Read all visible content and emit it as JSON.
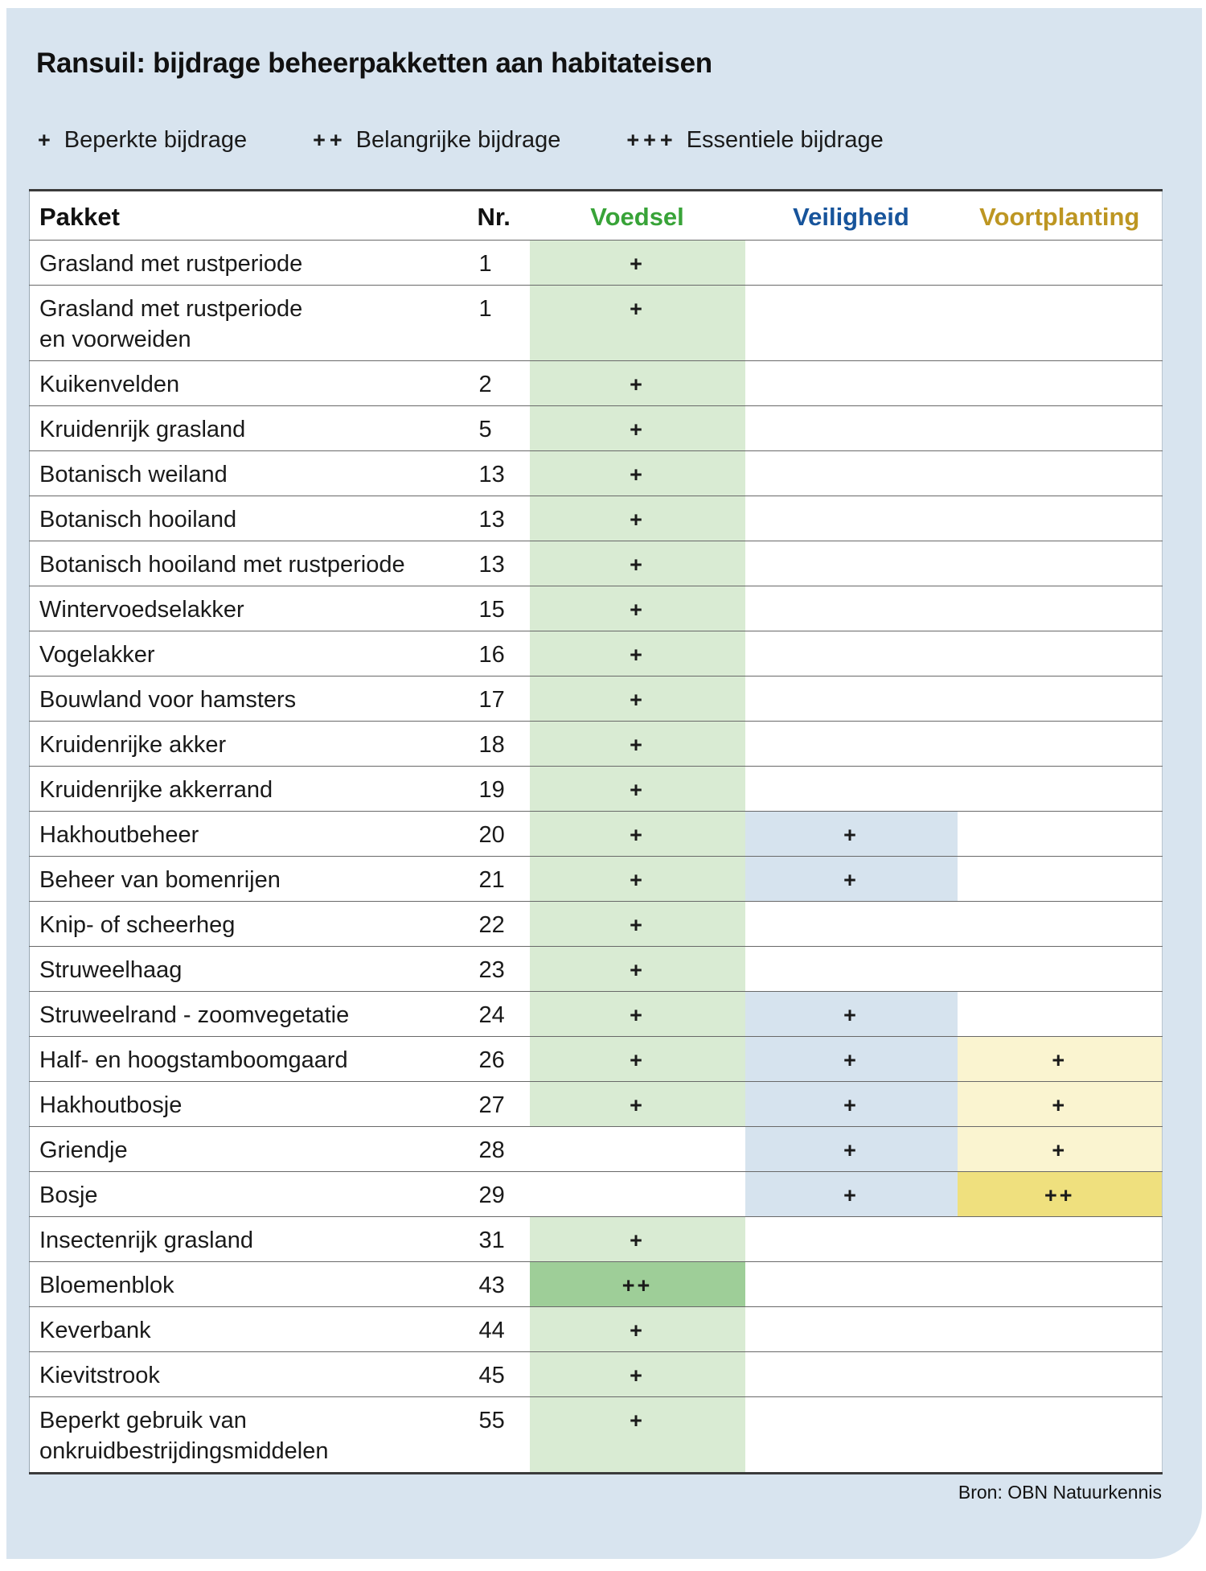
{
  "title": "Ransuil: bijdrage beheerpakketten aan habitateisen",
  "legend": [
    {
      "symbol": "+",
      "label": "Beperkte bijdrage"
    },
    {
      "symbol": "++",
      "label": "Belangrijke bijdrage"
    },
    {
      "symbol": "+++",
      "label": "Essentiele bijdrage"
    }
  ],
  "source": "Bron: OBN Natuurkennis",
  "colors": {
    "panel_background": "#d8e4ef",
    "voedsel_header": "#38a338",
    "veiligheid_header": "#17549b",
    "voortplanting_header": "#bd9622",
    "voedsel_plus": "#d9ebd3",
    "voedsel_plus2": "#9ece98",
    "veiligheid_plus": "#d6e3ee",
    "voortplanting_plus": "#faf4d0",
    "voortplanting_plus2": "#efe07e"
  },
  "chart_data": {
    "type": "table",
    "columns": [
      "Pakket",
      "Nr.",
      "Voedsel",
      "Veiligheid",
      "Voortplanting"
    ],
    "value_meanings": {
      "+": "Beperkte bijdrage",
      "++": "Belangrijke bijdrage",
      "+++": "Essentiele bijdrage"
    },
    "rows": [
      {
        "pakket_lines": [
          "Grasland met rustperiode"
        ],
        "nr": "1",
        "voedsel": "+",
        "veiligheid": "",
        "voortplanting": ""
      },
      {
        "pakket_lines": [
          "Grasland met rustperiode",
          "en voorweiden"
        ],
        "nr": "1",
        "voedsel": "+",
        "veiligheid": "",
        "voortplanting": ""
      },
      {
        "pakket_lines": [
          "Kuikenvelden"
        ],
        "nr": "2",
        "voedsel": "+",
        "veiligheid": "",
        "voortplanting": ""
      },
      {
        "pakket_lines": [
          "Kruidenrijk grasland"
        ],
        "nr": "5",
        "voedsel": "+",
        "veiligheid": "",
        "voortplanting": ""
      },
      {
        "pakket_lines": [
          "Botanisch weiland"
        ],
        "nr": "13",
        "voedsel": "+",
        "veiligheid": "",
        "voortplanting": ""
      },
      {
        "pakket_lines": [
          "Botanisch hooiland"
        ],
        "nr": "13",
        "voedsel": "+",
        "veiligheid": "",
        "voortplanting": ""
      },
      {
        "pakket_lines": [
          "Botanisch hooiland met rustperiode"
        ],
        "nr": "13",
        "voedsel": "+",
        "veiligheid": "",
        "voortplanting": ""
      },
      {
        "pakket_lines": [
          "Wintervoedselakker"
        ],
        "nr": "15",
        "voedsel": "+",
        "veiligheid": "",
        "voortplanting": ""
      },
      {
        "pakket_lines": [
          "Vogelakker"
        ],
        "nr": "16",
        "voedsel": "+",
        "veiligheid": "",
        "voortplanting": ""
      },
      {
        "pakket_lines": [
          "Bouwland voor hamsters"
        ],
        "nr": "17",
        "voedsel": "+",
        "veiligheid": "",
        "voortplanting": ""
      },
      {
        "pakket_lines": [
          "Kruidenrijke akker"
        ],
        "nr": "18",
        "voedsel": "+",
        "veiligheid": "",
        "voortplanting": ""
      },
      {
        "pakket_lines": [
          "Kruidenrijke akkerrand"
        ],
        "nr": "19",
        "voedsel": "+",
        "veiligheid": "",
        "voortplanting": ""
      },
      {
        "pakket_lines": [
          "Hakhoutbeheer"
        ],
        "nr": "20",
        "voedsel": "+",
        "veiligheid": "+",
        "voortplanting": ""
      },
      {
        "pakket_lines": [
          "Beheer van bomenrijen"
        ],
        "nr": "21",
        "voedsel": "+",
        "veiligheid": "+",
        "voortplanting": ""
      },
      {
        "pakket_lines": [
          "Knip- of scheerheg"
        ],
        "nr": "22",
        "voedsel": "+",
        "veiligheid": "",
        "voortplanting": ""
      },
      {
        "pakket_lines": [
          "Struweelhaag"
        ],
        "nr": "23",
        "voedsel": "+",
        "veiligheid": "",
        "voortplanting": ""
      },
      {
        "pakket_lines": [
          "Struweelrand - zoomvegetatie"
        ],
        "nr": "24",
        "voedsel": "+",
        "veiligheid": "+",
        "voortplanting": ""
      },
      {
        "pakket_lines": [
          "Half- en hoogstamboomgaard"
        ],
        "nr": "26",
        "voedsel": "+",
        "veiligheid": "+",
        "voortplanting": "+"
      },
      {
        "pakket_lines": [
          "Hakhoutbosje"
        ],
        "nr": "27",
        "voedsel": "+",
        "veiligheid": "+",
        "voortplanting": "+"
      },
      {
        "pakket_lines": [
          "Griendje"
        ],
        "nr": "28",
        "voedsel": "",
        "veiligheid": "+",
        "voortplanting": "+"
      },
      {
        "pakket_lines": [
          "Bosje"
        ],
        "nr": "29",
        "voedsel": "",
        "veiligheid": "+",
        "voortplanting": "++"
      },
      {
        "pakket_lines": [
          "Insectenrijk grasland"
        ],
        "nr": "31",
        "voedsel": "+",
        "veiligheid": "",
        "voortplanting": ""
      },
      {
        "pakket_lines": [
          "Bloemenblok"
        ],
        "nr": "43",
        "voedsel": "++",
        "veiligheid": "",
        "voortplanting": ""
      },
      {
        "pakket_lines": [
          "Keverbank"
        ],
        "nr": "44",
        "voedsel": "+",
        "veiligheid": "",
        "voortplanting": ""
      },
      {
        "pakket_lines": [
          "Kievitstrook"
        ],
        "nr": "45",
        "voedsel": "+",
        "veiligheid": "",
        "voortplanting": ""
      },
      {
        "pakket_lines": [
          "Beperkt gebruik van",
          "onkruidbestrijdingsmiddelen"
        ],
        "nr": "55",
        "voedsel": "+",
        "veiligheid": "",
        "voortplanting": ""
      }
    ]
  }
}
